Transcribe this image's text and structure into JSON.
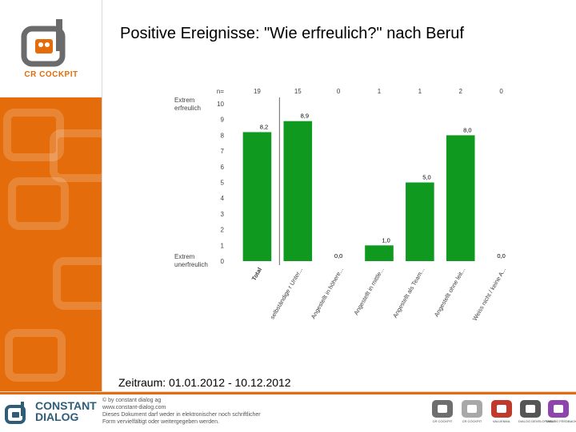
{
  "header": {
    "title": "Positive Ereignisse: \"Wie erfreulich?\" nach Beruf",
    "logo_text": "CR COCKPIT"
  },
  "chart_data": {
    "type": "bar",
    "title": "",
    "categories": [
      "Total",
      "selbständige r Unter...",
      "Angestellt in höhere...",
      "Angestellt in mittle...",
      "Angestellt als Team...",
      "Angestellt ohne leit...",
      "Weiss nicht / keine A..."
    ],
    "values": [
      8.2,
      8.9,
      0.0,
      1.0,
      5.0,
      8.0,
      0.0
    ],
    "value_labels": [
      "8,2",
      "8,9",
      "0,0",
      "1,0",
      "5,0",
      "8,0",
      "0,0"
    ],
    "n_label": "n=",
    "n": [
      "19",
      "15",
      "0",
      "1",
      "1",
      "2",
      "0"
    ],
    "ylim": [
      0,
      10
    ],
    "yticks": [
      "0",
      "1",
      "2",
      "3",
      "4",
      "5",
      "6",
      "7",
      "8",
      "9",
      "10"
    ],
    "ylabel_top": [
      "Extrem",
      "erfreulich"
    ],
    "ylabel_bottom": [
      "Extrem",
      "unerfreulich"
    ],
    "colors": {
      "bar": "#0f9a1f",
      "axis": "#7f7f7f",
      "text": "#404040"
    }
  },
  "period": "Zeitraum: 01.01.2012 - 10.12.2012",
  "footer": {
    "brand_line1": "CONSTANT",
    "brand_line2": "DIALOG",
    "legal": [
      "© by constant dialog ag",
      "www.constant-dialog.com",
      "Dieses Dokument darf weder in elektronischer noch schriftlicher",
      "Form vervielfältigt oder weitergegeben werden."
    ],
    "products": [
      {
        "label": "CR COCKPIT",
        "color": "#6e6e6e"
      },
      {
        "label": "CR COCKPIT",
        "color": "#a8a8a8"
      },
      {
        "label": "VALUEMAIL",
        "color": "#c0392b"
      },
      {
        "label": "DIALOG DEVELOPMENT",
        "color": "#555555"
      },
      {
        "label": "DIALOG FEEDBACK",
        "color": "#8e44ad"
      }
    ]
  }
}
